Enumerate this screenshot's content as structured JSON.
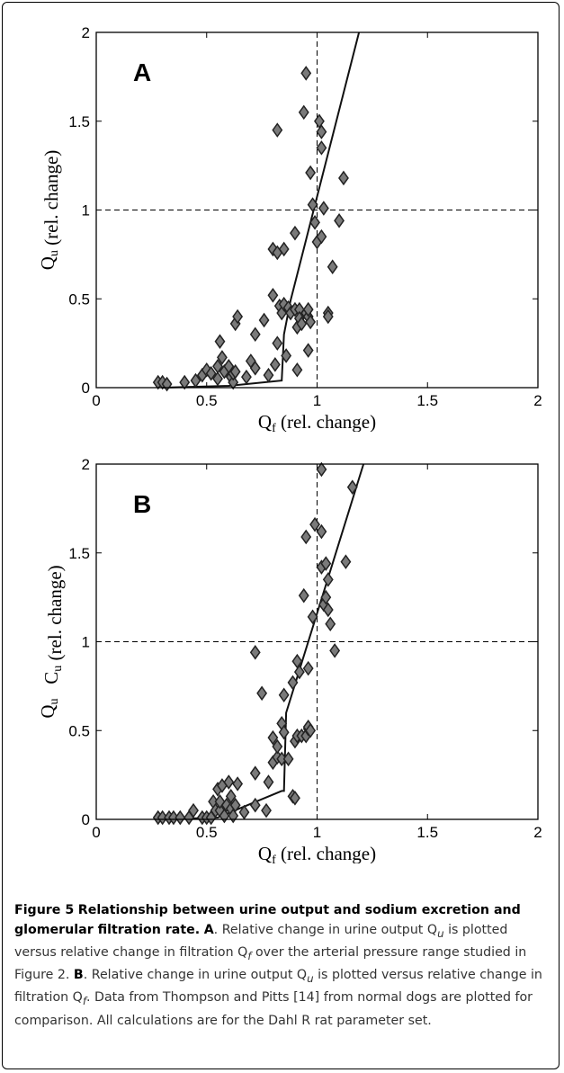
{
  "chart_data": [
    {
      "type": "scatter",
      "panel_label": "A",
      "xlabel": "Qf (rel. change)",
      "ylabel": "Qu (rel. change)",
      "xlim": [
        0,
        2
      ],
      "ylim": [
        0,
        2
      ],
      "xticks": [
        "0",
        "0.5",
        "1",
        "1.5",
        "2"
      ],
      "yticks": [
        "0",
        "0.5",
        "1",
        "1.5",
        "2"
      ],
      "reference_lines": {
        "x": 1,
        "y": 1
      },
      "series": [
        {
          "type": "scatter",
          "marker": "diamond",
          "points": [
            [
              0.28,
              0.03
            ],
            [
              0.3,
              0.03
            ],
            [
              0.32,
              0.02
            ],
            [
              0.4,
              0.03
            ],
            [
              0.45,
              0.04
            ],
            [
              0.48,
              0.07
            ],
            [
              0.5,
              0.1
            ],
            [
              0.52,
              0.08
            ],
            [
              0.55,
              0.05
            ],
            [
              0.55,
              0.12
            ],
            [
              0.56,
              0.26
            ],
            [
              0.57,
              0.17
            ],
            [
              0.58,
              0.09
            ],
            [
              0.6,
              0.12
            ],
            [
              0.61,
              0.06
            ],
            [
              0.62,
              0.03
            ],
            [
              0.62,
              0.08
            ],
            [
              0.63,
              0.09
            ],
            [
              0.63,
              0.36
            ],
            [
              0.64,
              0.4
            ],
            [
              0.68,
              0.06
            ],
            [
              0.7,
              0.15
            ],
            [
              0.72,
              0.3
            ],
            [
              0.72,
              0.11
            ],
            [
              0.76,
              0.38
            ],
            [
              0.78,
              0.07
            ],
            [
              0.8,
              0.78
            ],
            [
              0.8,
              0.52
            ],
            [
              0.81,
              0.13
            ],
            [
              0.82,
              0.76
            ],
            [
              0.82,
              0.25
            ],
            [
              0.82,
              1.45
            ],
            [
              0.83,
              0.46
            ],
            [
              0.84,
              0.42
            ],
            [
              0.85,
              0.78
            ],
            [
              0.85,
              0.47
            ],
            [
              0.86,
              0.18
            ],
            [
              0.87,
              0.45
            ],
            [
              0.88,
              0.42
            ],
            [
              0.9,
              0.87
            ],
            [
              0.9,
              0.44
            ],
            [
              0.91,
              0.34
            ],
            [
              0.91,
              0.1
            ],
            [
              0.92,
              0.44
            ],
            [
              0.92,
              0.39
            ],
            [
              0.93,
              0.36
            ],
            [
              0.94,
              1.55
            ],
            [
              0.95,
              1.77
            ],
            [
              0.95,
              0.42
            ],
            [
              0.96,
              0.4
            ],
            [
              0.96,
              0.21
            ],
            [
              0.96,
              0.44
            ],
            [
              0.97,
              1.21
            ],
            [
              0.97,
              0.37
            ],
            [
              0.98,
              1.03
            ],
            [
              0.99,
              0.93
            ],
            [
              1.0,
              0.82
            ],
            [
              1.01,
              1.5
            ],
            [
              1.02,
              1.44
            ],
            [
              1.02,
              1.35
            ],
            [
              1.02,
              0.85
            ],
            [
              1.03,
              1.01
            ],
            [
              1.05,
              0.42
            ],
            [
              1.05,
              0.4
            ],
            [
              1.07,
              0.68
            ],
            [
              1.1,
              0.94
            ],
            [
              1.12,
              1.18
            ]
          ]
        },
        {
          "type": "line",
          "points": [
            [
              0.3,
              0.0
            ],
            [
              0.6,
              0.01
            ],
            [
              0.84,
              0.04
            ],
            [
              0.85,
              0.3
            ],
            [
              0.88,
              0.49
            ],
            [
              1.19,
              2.0
            ]
          ]
        }
      ]
    },
    {
      "type": "scatter",
      "panel_label": "B",
      "xlabel": "Qf (rel. change)",
      "ylabel": "Qu   Cu (rel. change)",
      "xlim": [
        0,
        2
      ],
      "ylim": [
        0,
        2
      ],
      "xticks": [
        "0",
        "0.5",
        "1",
        "1.5",
        "2"
      ],
      "yticks": [
        "0",
        "0.5",
        "1",
        "1.5",
        "2"
      ],
      "reference_lines": {
        "x": 1,
        "y": 1
      },
      "series": [
        {
          "type": "scatter",
          "marker": "diamond",
          "points": [
            [
              0.28,
              0.01
            ],
            [
              0.3,
              0.01
            ],
            [
              0.33,
              0.01
            ],
            [
              0.35,
              0.01
            ],
            [
              0.38,
              0.01
            ],
            [
              0.42,
              0.01
            ],
            [
              0.44,
              0.05
            ],
            [
              0.48,
              0.01
            ],
            [
              0.5,
              0.01
            ],
            [
              0.52,
              0.01
            ],
            [
              0.53,
              0.1
            ],
            [
              0.54,
              0.05
            ],
            [
              0.55,
              0.17
            ],
            [
              0.56,
              0.05
            ],
            [
              0.56,
              0.1
            ],
            [
              0.57,
              0.19
            ],
            [
              0.58,
              0.02
            ],
            [
              0.59,
              0.08
            ],
            [
              0.6,
              0.21
            ],
            [
              0.61,
              0.06
            ],
            [
              0.61,
              0.13
            ],
            [
              0.62,
              0.02
            ],
            [
              0.63,
              0.08
            ],
            [
              0.64,
              0.2
            ],
            [
              0.67,
              0.04
            ],
            [
              0.72,
              0.08
            ],
            [
              0.72,
              0.94
            ],
            [
              0.72,
              0.26
            ],
            [
              0.75,
              0.71
            ],
            [
              0.77,
              0.05
            ],
            [
              0.78,
              0.21
            ],
            [
              0.8,
              0.46
            ],
            [
              0.8,
              0.32
            ],
            [
              0.82,
              0.35
            ],
            [
              0.82,
              0.41
            ],
            [
              0.84,
              0.54
            ],
            [
              0.84,
              0.34
            ],
            [
              0.85,
              0.49
            ],
            [
              0.85,
              0.7
            ],
            [
              0.87,
              0.34
            ],
            [
              0.89,
              0.77
            ],
            [
              0.89,
              0.13
            ],
            [
              0.9,
              0.44
            ],
            [
              0.9,
              0.12
            ],
            [
              0.91,
              0.47
            ],
            [
              0.91,
              0.89
            ],
            [
              0.92,
              0.83
            ],
            [
              0.93,
              0.47
            ],
            [
              0.94,
              1.26
            ],
            [
              0.95,
              1.59
            ],
            [
              0.95,
              0.47
            ],
            [
              0.96,
              0.51
            ],
            [
              0.96,
              0.52
            ],
            [
              0.96,
              0.85
            ],
            [
              0.97,
              0.5
            ],
            [
              0.98,
              1.14
            ],
            [
              0.99,
              1.66
            ],
            [
              1.02,
              1.97
            ],
            [
              1.02,
              1.62
            ],
            [
              1.02,
              1.42
            ],
            [
              1.03,
              1.21
            ],
            [
              1.04,
              1.25
            ],
            [
              1.04,
              1.44
            ],
            [
              1.05,
              1.35
            ],
            [
              1.05,
              1.18
            ],
            [
              1.06,
              1.1
            ],
            [
              1.08,
              0.95
            ],
            [
              1.13,
              1.45
            ],
            [
              1.16,
              1.87
            ]
          ]
        },
        {
          "type": "line",
          "points": [
            [
              0.3,
              0.0
            ],
            [
              0.55,
              0.01
            ],
            [
              0.84,
              0.16
            ],
            [
              0.85,
              0.16
            ],
            [
              0.86,
              0.6
            ],
            [
              1.21,
              2.0
            ]
          ]
        }
      ]
    }
  ],
  "caption": {
    "figure_label": "Figure 5",
    "title": "Relationship between urine output and sodium excretion and glomerular filtration rate.",
    "panel_a_label": "A",
    "panel_a_text": ". Relative change in urine output Q",
    "panel_a_sub1": "u",
    "panel_a_text2": " is plotted versus relative change in filtration Q",
    "panel_a_sub2": "f",
    "panel_a_text3": " over the arterial pressure range studied in Figure 2.",
    "panel_b_label": "B",
    "panel_b_text": ". Relative change in urine output Q",
    "panel_b_sub1": "u",
    "panel_b_text2": " is plotted versus relative change in filtration Q",
    "panel_b_sub2": "f",
    "panel_b_text3": ". Data from Thompson and Pitts [14] from normal dogs are plotted for comparison. All calculations are for the Dahl R rat parameter set."
  }
}
